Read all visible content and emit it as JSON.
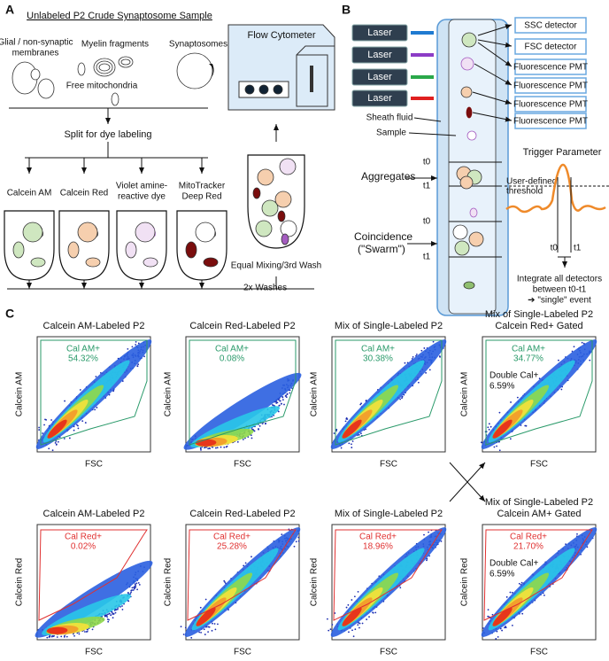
{
  "panel_a": {
    "label": "A",
    "title": "Unlabeled P2 Crude Synaptosome Sample",
    "glial": [
      "Glial / non-synaptic",
      "membranes"
    ],
    "myelin": "Myelin fragments",
    "synaptosomes": "Synaptosomes",
    "mitochondria": "Free mitochondria",
    "split": "Split for dye labeling",
    "dyes": [
      [
        "Calcein AM"
      ],
      [
        "Calcein Red"
      ],
      [
        "Violet amine-",
        "reactive dye"
      ],
      [
        "MitoTracker",
        "Deep Red"
      ]
    ],
    "mixing": "Equal Mixing/3rd Wash",
    "washes": "2x Washes",
    "cytometer": "Flow Cytometer"
  },
  "panel_b": {
    "label": "B",
    "lasers": [
      "Laser",
      "Laser",
      "Laser",
      "Laser"
    ],
    "detectors": [
      "SSC detector",
      "FSC detector",
      "Fluorescence PMT",
      "Fluorescence PMT",
      "Fluorescence PMT",
      "Fluorescence PMT"
    ],
    "sheath": "Sheath fluid",
    "sample": "Sample",
    "aggregates": "Aggregates",
    "coincidence": [
      "Coincidence",
      "(\"Swarm\")"
    ],
    "times": [
      "t0",
      "t1",
      "t0",
      "t1"
    ],
    "trigger": "Trigger Parameter",
    "threshold": [
      "User-defined",
      "threshold"
    ],
    "trace_times": [
      "t0",
      "t1"
    ],
    "integrate": [
      "Integrate all detectors",
      "between t0-t1",
      "➔ \"single\" event"
    ]
  },
  "panel_c": {
    "label": "C",
    "plots": [
      {
        "title": [
          "Calcein AM-Labeled P2"
        ],
        "gate": "Cal AM+",
        "pct": "54.32%",
        "y_label": "Calcein AM",
        "x_label": "FSC"
      },
      {
        "title": [
          "Calcein Red-Labeled P2"
        ],
        "gate": "Cal AM+",
        "pct": "0.08%",
        "y_label": "Calcein AM",
        "x_label": "FSC"
      },
      {
        "title": [
          "Mix of Single-Labeled P2"
        ],
        "gate": "Cal AM+",
        "pct": "30.38%",
        "y_label": "Calcein AM",
        "x_label": "FSC"
      },
      {
        "title": [
          "Mix of Single-Labeled P2",
          "Calcein Red+ Gated"
        ],
        "gate": "Cal AM+",
        "pct": "34.77%",
        "double": [
          "Double Cal+",
          "6.59%"
        ],
        "y_label": "Calcein AM",
        "x_label": "FSC"
      },
      {
        "title": [
          "Calcein AM-Labeled P2"
        ],
        "gate": "Cal Red+",
        "pct": "0.02%",
        "y_label": "Calcein Red",
        "x_label": "FSC"
      },
      {
        "title": [
          "Calcein Red-Labeled P2"
        ],
        "gate": "Cal Red+",
        "pct": "25.28%",
        "y_label": "Calcein Red",
        "x_label": "FSC"
      },
      {
        "title": [
          "Mix of Single-Labeled P2"
        ],
        "gate": "Cal Red+",
        "pct": "18.96%",
        "y_label": "Calcein Red",
        "x_label": "FSC"
      },
      {
        "title": [
          "Mix of Single-Labeled P2",
          "Calcein AM+ Gated"
        ],
        "gate": "Cal Red+",
        "pct": "21.70%",
        "double": [
          "Double Cal+",
          "6.59%"
        ],
        "y_label": "Calcein Red",
        "x_label": "FSC"
      }
    ]
  }
}
